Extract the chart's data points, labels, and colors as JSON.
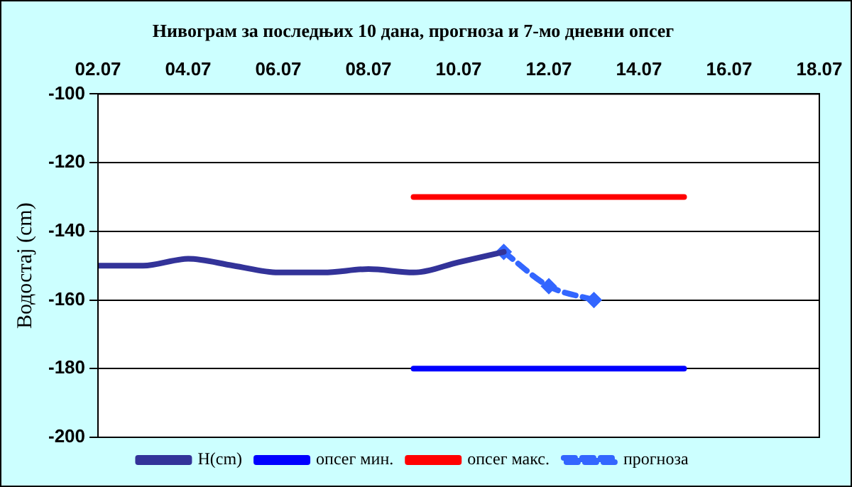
{
  "chart_data": {
    "type": "line",
    "title": "Нивограм за последњих 10 дана, прогноза и 7-мо дневни опсег",
    "ylabel": "Водостај (cm)",
    "xlim": [
      "--07-02",
      "--07-18"
    ],
    "xticks": [
      {
        "value": "--07-02",
        "label": "02.07"
      },
      {
        "value": "--07-04",
        "label": "04.07"
      },
      {
        "value": "--07-06",
        "label": "06.07"
      },
      {
        "value": "--07-08",
        "label": "08.07"
      },
      {
        "value": "--07-10",
        "label": "10.07"
      },
      {
        "value": "--07-12",
        "label": "12.07"
      },
      {
        "value": "--07-14",
        "label": "14.07"
      },
      {
        "value": "--07-16",
        "label": "16.07"
      },
      {
        "value": "--07-18",
        "label": "18.07"
      }
    ],
    "ylim": [
      -200,
      -100
    ],
    "yticks": [
      -200,
      -180,
      -160,
      -140,
      -120,
      -100
    ],
    "grid": "y",
    "legend": "bottom",
    "series": [
      {
        "name": "H(cm)",
        "color": "#333399",
        "x": [
          "--07-02",
          "--07-03",
          "--07-04",
          "--07-05",
          "--07-06",
          "--07-07",
          "--07-08",
          "--07-09",
          "--07-10",
          "--07-11"
        ],
        "values": [
          -150,
          -150,
          -148,
          -150,
          -152,
          -152,
          -151,
          -152,
          -149,
          -146
        ],
        "marker": "none",
        "line_style": "solid"
      },
      {
        "name": "опсег мин.",
        "color": "#0000ff",
        "x": [
          "--07-09",
          "--07-15"
        ],
        "values": [
          -180,
          -180
        ],
        "marker": "none",
        "line_style": "solid"
      },
      {
        "name": "опсег макс.",
        "color": "#ff0000",
        "x": [
          "--07-09",
          "--07-15"
        ],
        "values": [
          -130,
          -130
        ],
        "marker": "none",
        "line_style": "solid"
      },
      {
        "name": "прогноза",
        "color": "#3366ff",
        "x": [
          "--07-11",
          "--07-12",
          "--07-13"
        ],
        "values": [
          -146,
          -156,
          -160
        ],
        "marker": "diamond",
        "line_style": "dashed"
      }
    ]
  }
}
